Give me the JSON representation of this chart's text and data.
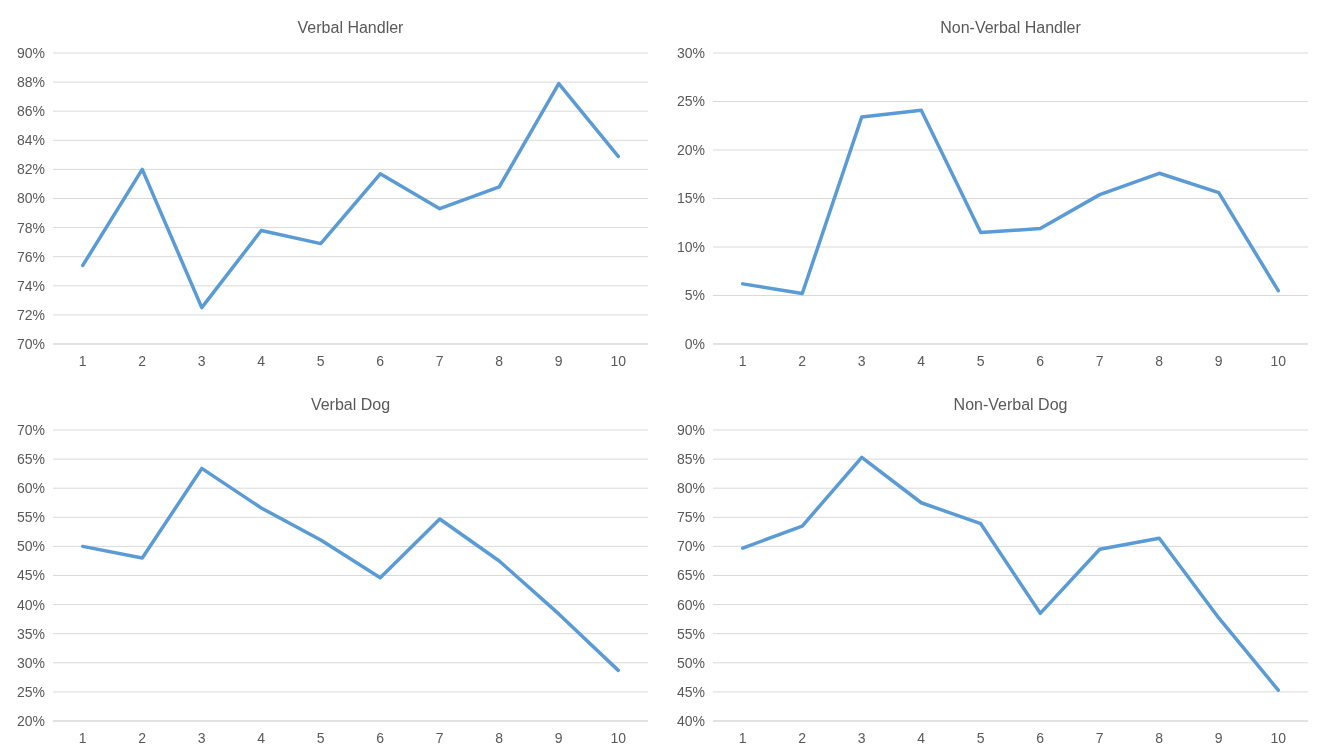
{
  "chart_data": [
    {
      "type": "line",
      "title": "Verbal Handler",
      "categories": [
        "1",
        "2",
        "3",
        "4",
        "5",
        "6",
        "7",
        "8",
        "9",
        "10"
      ],
      "series": [
        {
          "color": "#5b9bd5",
          "values": [
            75.4,
            82.0,
            72.5,
            77.8,
            76.9,
            81.7,
            79.3,
            80.8,
            87.9,
            82.9
          ]
        }
      ],
      "ylim": [
        70,
        90
      ],
      "yticks": [
        {
          "value": 70,
          "label": "70%"
        },
        {
          "value": 72,
          "label": "72%"
        },
        {
          "value": 74,
          "label": "74%"
        },
        {
          "value": 76,
          "label": "76%"
        },
        {
          "value": 78,
          "label": "78%"
        },
        {
          "value": 80,
          "label": "80%"
        },
        {
          "value": 82,
          "label": "82%"
        },
        {
          "value": 84,
          "label": "84%"
        },
        {
          "value": 86,
          "label": "86%"
        },
        {
          "value": 88,
          "label": "88%"
        },
        {
          "value": 90,
          "label": "90%"
        }
      ],
      "grid": "y"
    },
    {
      "type": "line",
      "title": "Non-Verbal Handler",
      "categories": [
        "1",
        "2",
        "3",
        "4",
        "5",
        "6",
        "7",
        "8",
        "9",
        "10"
      ],
      "series": [
        {
          "color": "#5b9bd5",
          "values": [
            6.2,
            5.2,
            23.4,
            24.1,
            11.5,
            11.9,
            15.4,
            17.6,
            15.6,
            5.5
          ]
        }
      ],
      "ylim": [
        0,
        30
      ],
      "yticks": [
        {
          "value": 0,
          "label": "0%"
        },
        {
          "value": 5,
          "label": "5%"
        },
        {
          "value": 10,
          "label": "10%"
        },
        {
          "value": 15,
          "label": "15%"
        },
        {
          "value": 20,
          "label": "20%"
        },
        {
          "value": 25,
          "label": "25%"
        },
        {
          "value": 30,
          "label": "30%"
        }
      ],
      "grid": "y"
    },
    {
      "type": "line",
      "title": "Verbal Dog",
      "categories": [
        "1",
        "2",
        "3",
        "4",
        "5",
        "6",
        "7",
        "8",
        "9",
        "10"
      ],
      "series": [
        {
          "color": "#5b9bd5",
          "values": [
            50.0,
            48.0,
            63.4,
            56.6,
            51.1,
            44.6,
            54.7,
            47.5,
            38.4,
            28.7
          ]
        }
      ],
      "ylim": [
        20,
        70
      ],
      "yticks": [
        {
          "value": 20,
          "label": "20%"
        },
        {
          "value": 25,
          "label": "25%"
        },
        {
          "value": 30,
          "label": "30%"
        },
        {
          "value": 35,
          "label": "35%"
        },
        {
          "value": 40,
          "label": "40%"
        },
        {
          "value": 45,
          "label": "45%"
        },
        {
          "value": 50,
          "label": "50%"
        },
        {
          "value": 55,
          "label": "55%"
        },
        {
          "value": 60,
          "label": "60%"
        },
        {
          "value": 65,
          "label": "65%"
        },
        {
          "value": 70,
          "label": "70%"
        }
      ],
      "grid": "y"
    },
    {
      "type": "line",
      "title": "Non-Verbal Dog",
      "categories": [
        "1",
        "2",
        "3",
        "4",
        "5",
        "6",
        "7",
        "8",
        "9",
        "10"
      ],
      "series": [
        {
          "color": "#5b9bd5",
          "values": [
            69.7,
            73.5,
            85.3,
            77.5,
            73.9,
            58.5,
            69.5,
            71.4,
            57.7,
            45.3
          ]
        }
      ],
      "ylim": [
        40,
        90
      ],
      "yticks": [
        {
          "value": 40,
          "label": "40%"
        },
        {
          "value": 45,
          "label": "45%"
        },
        {
          "value": 50,
          "label": "50%"
        },
        {
          "value": 55,
          "label": "55%"
        },
        {
          "value": 60,
          "label": "60%"
        },
        {
          "value": 65,
          "label": "65%"
        },
        {
          "value": 70,
          "label": "70%"
        },
        {
          "value": 75,
          "label": "75%"
        },
        {
          "value": 80,
          "label": "80%"
        },
        {
          "value": 85,
          "label": "85%"
        },
        {
          "value": 90,
          "label": "90%"
        }
      ],
      "grid": "y"
    }
  ]
}
